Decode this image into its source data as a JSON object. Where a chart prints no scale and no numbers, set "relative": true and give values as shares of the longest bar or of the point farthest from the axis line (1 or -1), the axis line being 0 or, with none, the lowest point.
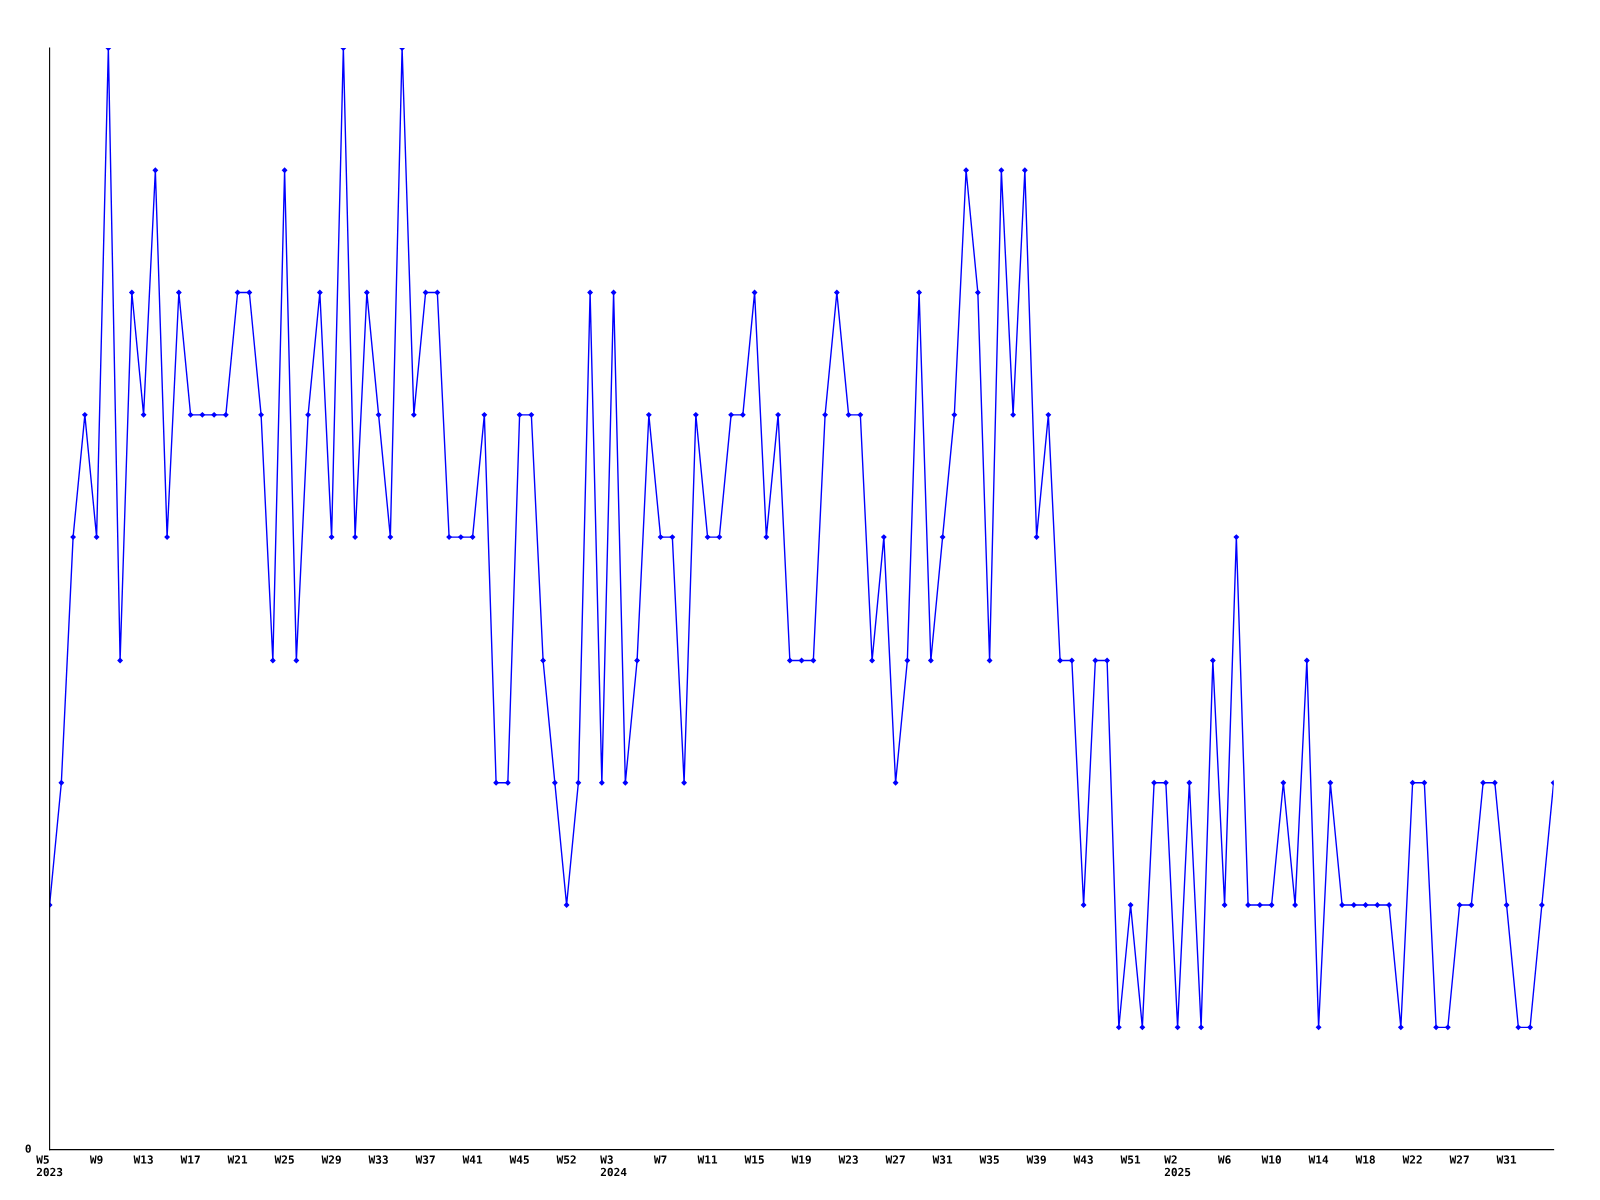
{
  "chart_data": {
    "type": "line",
    "relative": true,
    "marker": "diamond",
    "line_style": "solid",
    "grid": false,
    "legend": false,
    "annotations": [
      "0"
    ],
    "categories": [
      "W5\n2023",
      null,
      null,
      null,
      "W9",
      null,
      null,
      null,
      "W13",
      null,
      null,
      null,
      "W17",
      null,
      null,
      null,
      "W21",
      null,
      null,
      null,
      "W25",
      null,
      null,
      null,
      "W29",
      null,
      null,
      null,
      "W33",
      null,
      null,
      null,
      "W37",
      null,
      null,
      null,
      "W41",
      null,
      null,
      null,
      "W45",
      null,
      null,
      null,
      "W52",
      null,
      null,
      null,
      "W3\n2024",
      null,
      null,
      null,
      "W7",
      null,
      null,
      null,
      "W11",
      null,
      null,
      null,
      "W15",
      null,
      null,
      null,
      "W19",
      null,
      null,
      null,
      "W23",
      null,
      null,
      null,
      "W27",
      null,
      null,
      null,
      "W31",
      null,
      null,
      null,
      "W35",
      null,
      null,
      null,
      "W39",
      null,
      null,
      null,
      "W43",
      null,
      null,
      null,
      "W51",
      null,
      null,
      null,
      "W2\n2025",
      null,
      null,
      null,
      "W6",
      null,
      null,
      null,
      "W10",
      null,
      null,
      null,
      "W14",
      null,
      null,
      null,
      "W18",
      null,
      null,
      null,
      "W22",
      null,
      null,
      null,
      "W27",
      null,
      null,
      null,
      "W31",
      null,
      null,
      null,
      null
    ],
    "series": [
      {
        "color": "#0000ff",
        "values": [
          0.222,
          0.333,
          0.556,
          0.667,
          0.556,
          1,
          0.444,
          0.778,
          0.667,
          0.889,
          0.556,
          0.778,
          0.667,
          0.667,
          0.667,
          0.667,
          0.778,
          0.778,
          0.667,
          0.444,
          0.889,
          0.444,
          0.667,
          0.778,
          0.556,
          1,
          0.556,
          0.778,
          0.667,
          0.556,
          1,
          0.667,
          0.778,
          0.778,
          0.556,
          0.556,
          0.556,
          0.667,
          0.333,
          0.333,
          0.667,
          0.667,
          0.444,
          0.333,
          0.222,
          0.333,
          0.778,
          0.333,
          0.778,
          0.333,
          0.444,
          0.667,
          0.556,
          0.556,
          0.333,
          0.667,
          0.556,
          0.556,
          0.667,
          0.667,
          0.778,
          0.556,
          0.667,
          0.444,
          0.444,
          0.444,
          0.667,
          0.778,
          0.667,
          0.667,
          0.444,
          0.556,
          0.333,
          0.444,
          0.778,
          0.444,
          0.556,
          0.667,
          0.889,
          0.778,
          0.444,
          0.889,
          0.667,
          0.889,
          0.556,
          0.667,
          0.444,
          0.444,
          0.222,
          0.444,
          0.444,
          0.111,
          0.222,
          0.111,
          0.333,
          0.333,
          0.111,
          0.333,
          0.111,
          0.444,
          0.222,
          0.556,
          0.222,
          0.222,
          0.222,
          0.333,
          0.222,
          0.444,
          0.111,
          0.333,
          0.222,
          0.222,
          0.222,
          0.222,
          0.222,
          0.111,
          0.333,
          0.333,
          0.111,
          0.111,
          0.222,
          0.222,
          0.333,
          0.333,
          0.222,
          0.111,
          0.111,
          0.222,
          0.333
        ]
      }
    ]
  }
}
